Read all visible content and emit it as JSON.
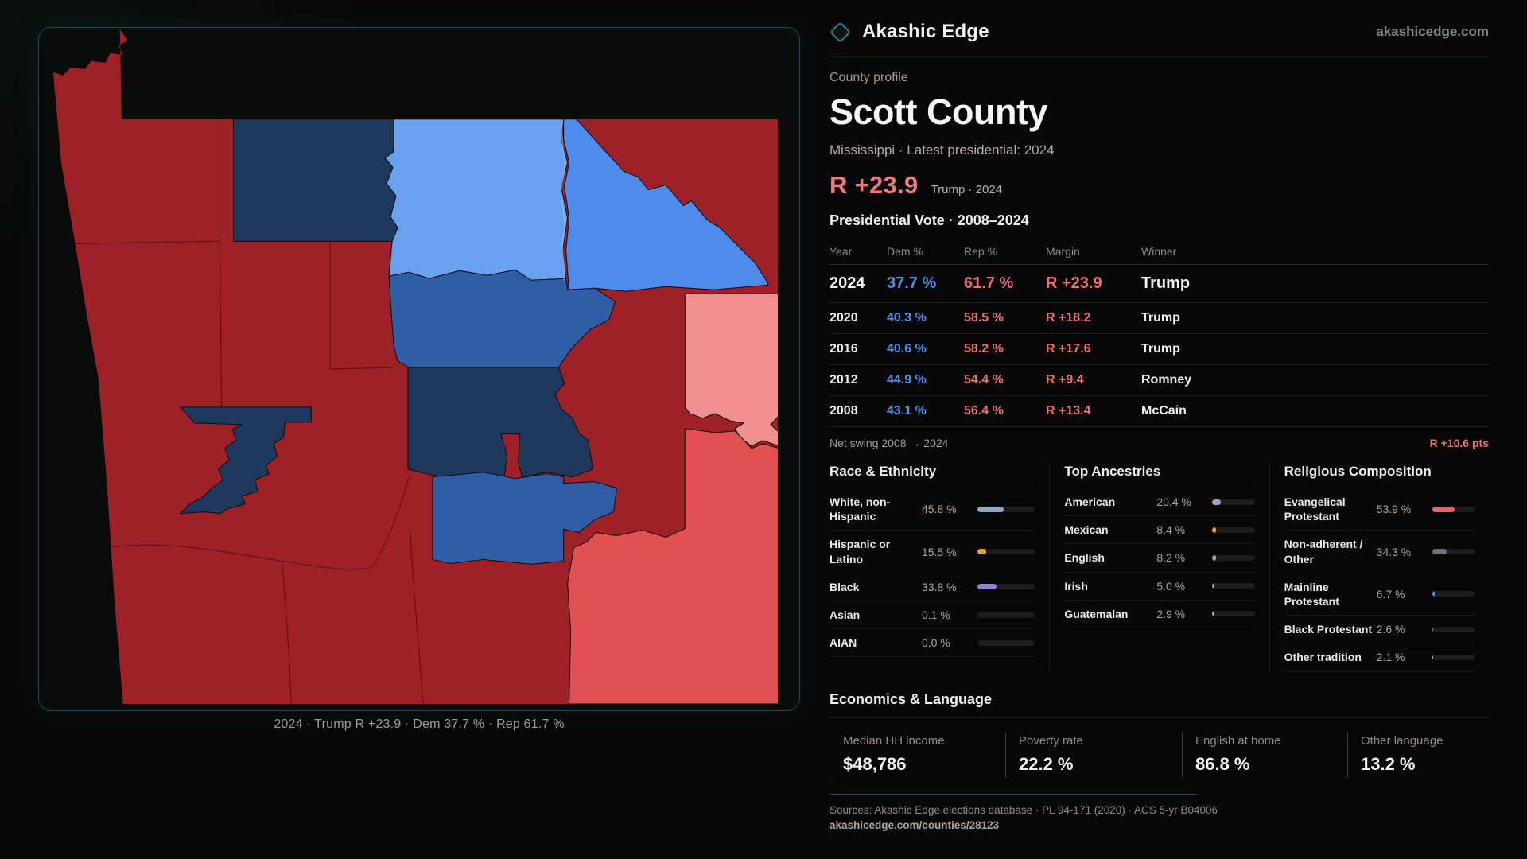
{
  "site": {
    "brand": "Akashic Edge",
    "domain_link": "akashicedge.com"
  },
  "profile": {
    "kicker": "County profile",
    "title": "Scott County",
    "subtitle": "Mississippi · Latest presidential: 2024",
    "headline_margin": "R +23.9",
    "headline_context": "Trump · 2024"
  },
  "map": {
    "caption": "2024 · Trump R +23.9 · Dem 37.7 % · Rep 61.7 %"
  },
  "vote_table": {
    "title": "Presidential Vote · 2008–2024",
    "columns": {
      "year": "Year",
      "dem": "Dem %",
      "rep": "Rep %",
      "margin": "Margin",
      "winner": "Winner"
    },
    "rows": [
      {
        "year": "2024",
        "dem": "37.7 %",
        "rep": "61.7 %",
        "margin": "R +23.9",
        "winner": "Trump",
        "latest": true
      },
      {
        "year": "2020",
        "dem": "40.3 %",
        "rep": "58.5 %",
        "margin": "R +18.2",
        "winner": "Trump"
      },
      {
        "year": "2016",
        "dem": "40.6 %",
        "rep": "58.2 %",
        "margin": "R +17.6",
        "winner": "Trump"
      },
      {
        "year": "2012",
        "dem": "44.9 %",
        "rep": "54.4 %",
        "margin": "R +9.4",
        "winner": "Romney"
      },
      {
        "year": "2008",
        "dem": "43.1 %",
        "rep": "56.4 %",
        "margin": "R +13.4",
        "winner": "McCain"
      }
    ],
    "net_swing_label": "Net swing 2008 → 2024",
    "net_swing_value": "R +10.6 pts"
  },
  "race": {
    "title": "Race & Ethnicity",
    "rows": [
      {
        "label": "White, non-Hispanic",
        "value": "45.8 %",
        "pct": 45.8,
        "color": "#93a7c3"
      },
      {
        "label": "Hispanic or Latino",
        "value": "15.5 %",
        "pct": 15.5,
        "color": "#e3a43c"
      },
      {
        "label": "Black",
        "value": "33.8 %",
        "pct": 33.8,
        "color": "#9a7fd6"
      },
      {
        "label": "Asian",
        "value": "0.1 %",
        "pct": 0.1,
        "color": "#93a7c3"
      },
      {
        "label": "AIAN",
        "value": "0.0 %",
        "pct": 0.0,
        "color": "#93a7c3"
      }
    ]
  },
  "ancestries": {
    "title": "Top Ancestries",
    "rows": [
      {
        "label": "American",
        "value": "20.4 %",
        "pct": 20.4,
        "color": "#93a7c3"
      },
      {
        "label": "Mexican",
        "value": "8.4 %",
        "pct": 8.4,
        "color": "#e3a43c"
      },
      {
        "label": "English",
        "value": "8.2 %",
        "pct": 8.2,
        "color": "#93a7c3"
      },
      {
        "label": "Irish",
        "value": "5.0 %",
        "pct": 5.0,
        "color": "#93a7c3"
      },
      {
        "label": "Guatemalan",
        "value": "2.9 %",
        "pct": 2.9,
        "color": "#e3a43c"
      }
    ]
  },
  "religion": {
    "title": "Religious Composition",
    "rows": [
      {
        "label": "Evangelical Protestant",
        "value": "53.9 %",
        "pct": 53.9,
        "color": "#e0656d"
      },
      {
        "label": "Non-adherent / Other",
        "value": "34.3 %",
        "pct": 34.3,
        "color": "#6b7380"
      },
      {
        "label": "Mainline Protestant",
        "value": "6.7 %",
        "pct": 6.7,
        "color": "#4e8fe8"
      },
      {
        "label": "Black Protestant",
        "value": "2.6 %",
        "pct": 2.6,
        "color": "#9a7fd6"
      },
      {
        "label": "Other tradition",
        "value": "2.1 %",
        "pct": 2.1,
        "color": "#c9c9c9"
      }
    ]
  },
  "economics": {
    "title": "Economics & Language",
    "stats": [
      {
        "label": "Median HH income",
        "value": "$48,786"
      },
      {
        "label": "Poverty rate",
        "value": "22.2 %"
      },
      {
        "label": "English at home",
        "value": "86.8 %"
      },
      {
        "label": "Other language",
        "value": "13.2 %"
      }
    ]
  },
  "footer": {
    "sources": "Sources: Akashic Edge elections database · PL 94-171 (2020) · ACS 5-yr B04006",
    "permalink": "akashicedge.com/counties/28123"
  },
  "colors": {
    "accent_teal": "#2a7680",
    "dem_blue": "#4f92e8",
    "rep_red": "#ee6f76",
    "headline_red": "#f2787f",
    "map_dark_red": "#9e2127",
    "map_medium_red": "#e15150",
    "map_pink": "#f09090",
    "map_cornflower": "#6aa1ef",
    "map_blue": "#4e8cec",
    "map_medium_blue": "#2e5ea6",
    "map_navy": "#1d3a5e"
  }
}
